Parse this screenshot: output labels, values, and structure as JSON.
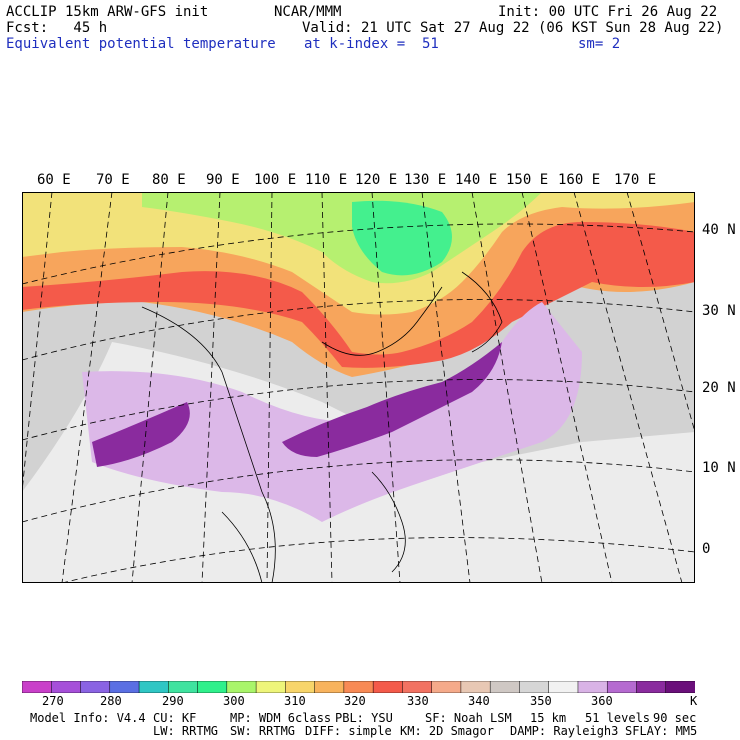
{
  "header": {
    "line1_left": "ACCLIP 15km ARW-GFS init",
    "line1_center": "NCAR/MMM",
    "line1_right": "Init: 00 UTC Fri 26 Aug 22",
    "line2_left": "Fcst:   45 h",
    "line2_right": "Valid: 21 UTC Sat 27 Aug 22 (06 KST Sun 28 Aug 22)",
    "line3_left": "Equivalent potential temperature",
    "line3_mid": "at k-index =  51",
    "line3_right": "sm= 2"
  },
  "longitude_labels": [
    "60 E",
    "70 E",
    "80 E",
    "90 E",
    "100 E",
    "110 E",
    "120 E",
    "130 E",
    "140 E",
    "150 E",
    "160 E",
    "170 E"
  ],
  "latitude_labels": [
    "40 N",
    "30 N",
    "20 N",
    "10 N",
    "0"
  ],
  "colorbar": {
    "unit": "K",
    "colors": [
      "#c93fc9",
      "#a64fd9",
      "#8a63e3",
      "#5a6fe3",
      "#2fc6c4",
      "#3fe39f",
      "#2ff08b",
      "#a9f56a",
      "#eef57a",
      "#f8d56a",
      "#f8b35d",
      "#f88a55",
      "#f45a4a",
      "#f27262",
      "#f5aa8a",
      "#e8c8b4",
      "#cfc8c4",
      "#d6d6d6",
      "#f2f2f2",
      "#d9b3e6",
      "#b56ad0",
      "#8a2b9e",
      "#6a0f7a"
    ],
    "ticks": [
      "270",
      "280",
      "290",
      "300",
      "310",
      "320",
      "330",
      "340",
      "350",
      "360"
    ]
  },
  "footer": {
    "line1": [
      "Model Info: V4.4",
      "CU: KF",
      "MP: WDM 6class",
      "PBL: YSU",
      "SF: Noah LSM",
      "15 km",
      "51 levels",
      "90 sec"
    ],
    "line2": [
      "LW: RRTMG",
      "SW: RRTMG",
      "DIFF: simple",
      "KM: 2D Smagor",
      "DAMP: Rayleigh3",
      "SFLAY: MM5"
    ]
  }
}
